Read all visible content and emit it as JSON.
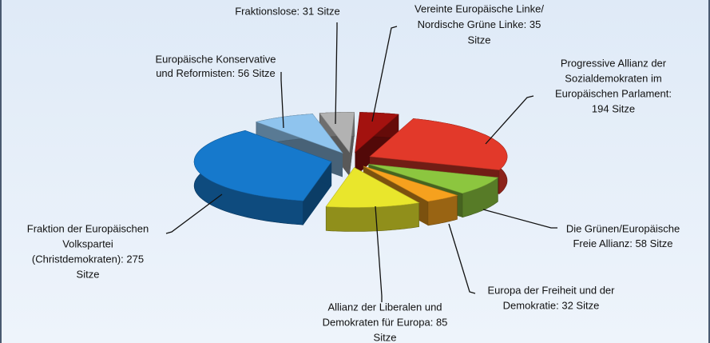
{
  "chart_data": {
    "type": "pie3d",
    "values": [
      35,
      194,
      58,
      32,
      85,
      275,
      56,
      31
    ],
    "value_labels": [
      [
        "Vereinte Europäische Linke/",
        "Nordische Grüne Linke: 35",
        "Sitze"
      ],
      [
        "Progressive Allianz der",
        "Sozialdemokraten im",
        "Europäischen Parlament:",
        "194 Sitze"
      ],
      [
        "Die Grünen/Europäische",
        "Freie Allianz: 58 Sitze"
      ],
      [
        "Europa der Freiheit und der",
        "Demokratie: 32 Sitze"
      ],
      [
        "Allianz der Liberalen und",
        "Demokraten für Europa: 85",
        "Sitze"
      ],
      [
        "Fraktion der Europäischen",
        "Volkspartei",
        "(Christdemokraten): 275",
        "Sitze"
      ],
      [
        "Europäische Konservative",
        "und Reformisten: 56 Sitze"
      ],
      [
        "Fraktionslose: 31 Sitze"
      ]
    ],
    "colors": [
      "#a3120f",
      "#e2392a",
      "#8cc63f",
      "#f6a11e",
      "#e9e62c",
      "#1679cc",
      "#8fc4ee",
      "#b2b2b2"
    ]
  }
}
